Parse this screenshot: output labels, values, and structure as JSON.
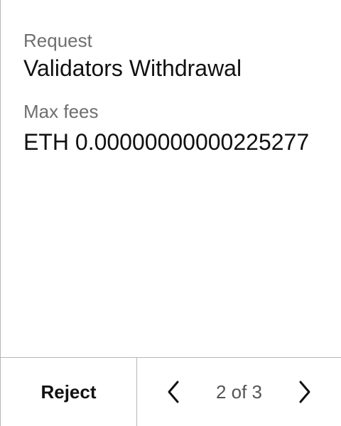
{
  "fields": {
    "request": {
      "label": "Request",
      "value": "Validators Withdrawal"
    },
    "max_fees": {
      "label": "Max fees",
      "value": "ETH 0.00000000000225277"
    }
  },
  "footer": {
    "reject_label": "Reject",
    "page_indicator": "2 of 3",
    "prev_icon": "chevron-left-icon",
    "next_icon": "chevron-right-icon"
  },
  "colors": {
    "divider": "#b7b7b7",
    "label": "#6f6f6f",
    "text": "#111111"
  }
}
